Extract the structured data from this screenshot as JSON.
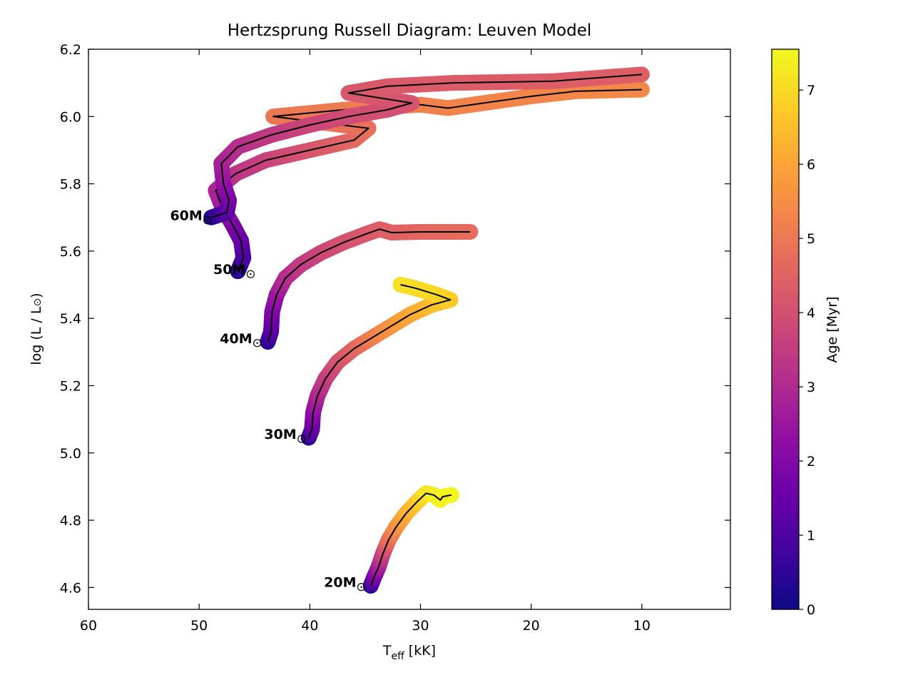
{
  "chart_data": {
    "type": "line",
    "title": "Hertzsprung Russell Diagram: Leuven Model",
    "xlabel_main": "T",
    "xlabel_sub": "eff",
    "xlabel_unit": " [kK]",
    "ylabel_main": "log (L / L",
    "ylabel_sym": "⊙",
    "ylabel_end": ")",
    "xlim": [
      60,
      2
    ],
    "ylim": [
      4.535,
      6.2
    ],
    "xticks": [
      60,
      50,
      40,
      30,
      20,
      10
    ],
    "xtick_labels": [
      "60",
      "50",
      "40",
      "30",
      "20",
      "10"
    ],
    "yticks": [
      4.6,
      4.8,
      5.0,
      5.2,
      5.4,
      5.6,
      5.8,
      6.0,
      6.2
    ],
    "ytick_labels": [
      "4.6",
      "4.8",
      "5.0",
      "5.2",
      "5.4",
      "5.6",
      "5.8",
      "6.0",
      "6.2"
    ],
    "colorbar": {
      "label": "Age [Myr]",
      "range": [
        0,
        7.55
      ],
      "ticks": [
        0,
        1,
        2,
        3,
        4,
        5,
        6,
        7
      ],
      "tick_labels": [
        "0",
        "1",
        "2",
        "3",
        "4",
        "5",
        "6",
        "7"
      ],
      "colormap": "plasma",
      "colors": [
        "#0d0887",
        "#41049d",
        "#6a00a8",
        "#8f0da4",
        "#b12a90",
        "#cc4778",
        "#e16462",
        "#f2844b",
        "#fca636",
        "#fcce25",
        "#f0f921"
      ]
    },
    "series": [
      {
        "name": "20M",
        "label_sym": "⊙",
        "label_at": [
          35.8,
          4.61
        ],
        "points": [
          {
            "x": 34.5,
            "y": 4.605,
            "age": 0.3
          },
          {
            "x": 34.2,
            "y": 4.63,
            "age": 1.5
          },
          {
            "x": 33.8,
            "y": 4.66,
            "age": 2.5
          },
          {
            "x": 33.4,
            "y": 4.7,
            "age": 3.5
          },
          {
            "x": 32.9,
            "y": 4.74,
            "age": 4.6
          },
          {
            "x": 32.2,
            "y": 4.78,
            "age": 5.4
          },
          {
            "x": 31.3,
            "y": 4.82,
            "age": 6.1
          },
          {
            "x": 30.3,
            "y": 4.855,
            "age": 6.6
          },
          {
            "x": 29.5,
            "y": 4.88,
            "age": 7.1
          },
          {
            "x": 28.8,
            "y": 4.875,
            "age": 7.3
          },
          {
            "x": 28.2,
            "y": 4.86,
            "age": 7.4
          },
          {
            "x": 28.0,
            "y": 4.87,
            "age": 7.45
          },
          {
            "x": 27.2,
            "y": 4.875,
            "age": 7.5
          }
        ]
      },
      {
        "name": "30M",
        "label_sym": "⊙",
        "label_at": [
          41.2,
          5.05
        ],
        "points": [
          {
            "x": 40.1,
            "y": 5.045,
            "age": 0.3
          },
          {
            "x": 39.8,
            "y": 5.07,
            "age": 1.2
          },
          {
            "x": 39.7,
            "y": 5.12,
            "age": 2.1
          },
          {
            "x": 39.3,
            "y": 5.17,
            "age": 2.8
          },
          {
            "x": 38.6,
            "y": 5.22,
            "age": 3.4
          },
          {
            "x": 37.5,
            "y": 5.27,
            "age": 4.0
          },
          {
            "x": 36.0,
            "y": 5.31,
            "age": 4.5
          },
          {
            "x": 34.5,
            "y": 5.34,
            "age": 5.0
          },
          {
            "x": 33.0,
            "y": 5.37,
            "age": 5.5
          },
          {
            "x": 31.0,
            "y": 5.41,
            "age": 6.0
          },
          {
            "x": 29.0,
            "y": 5.44,
            "age": 6.4
          },
          {
            "x": 27.3,
            "y": 5.455,
            "age": 6.7
          },
          {
            "x": 28.5,
            "y": 5.47,
            "age": 6.9
          },
          {
            "x": 30.5,
            "y": 5.49,
            "age": 7.0
          },
          {
            "x": 31.8,
            "y": 5.5,
            "age": 7.1
          }
        ]
      },
      {
        "name": "40M",
        "label_sym": "⊙",
        "label_at": [
          45.2,
          5.335
        ],
        "points": [
          {
            "x": 43.8,
            "y": 5.33,
            "age": 0.3
          },
          {
            "x": 43.5,
            "y": 5.36,
            "age": 1.0
          },
          {
            "x": 43.4,
            "y": 5.42,
            "age": 1.8
          },
          {
            "x": 43.0,
            "y": 5.47,
            "age": 2.4
          },
          {
            "x": 42.2,
            "y": 5.52,
            "age": 3.0
          },
          {
            "x": 40.8,
            "y": 5.56,
            "age": 3.4
          },
          {
            "x": 39.0,
            "y": 5.595,
            "age": 3.7
          },
          {
            "x": 37.0,
            "y": 5.625,
            "age": 4.0
          },
          {
            "x": 35.0,
            "y": 5.65,
            "age": 4.2
          },
          {
            "x": 33.7,
            "y": 5.665,
            "age": 4.35
          },
          {
            "x": 32.6,
            "y": 5.655,
            "age": 4.45
          },
          {
            "x": 30.0,
            "y": 5.657,
            "age": 4.55
          },
          {
            "x": 25.5,
            "y": 5.657,
            "age": 4.7
          }
        ]
      },
      {
        "name": "50M",
        "label_sym": "⊙",
        "label_at": [
          45.8,
          5.54
        ],
        "points": [
          {
            "x": 46.5,
            "y": 5.54,
            "age": 0.2
          },
          {
            "x": 46.0,
            "y": 5.58,
            "age": 0.8
          },
          {
            "x": 46.2,
            "y": 5.63,
            "age": 1.3
          },
          {
            "x": 47.0,
            "y": 5.68,
            "age": 1.8
          },
          {
            "x": 47.9,
            "y": 5.73,
            "age": 2.3
          },
          {
            "x": 48.5,
            "y": 5.78,
            "age": 2.8
          },
          {
            "x": 46.7,
            "y": 5.83,
            "age": 3.2
          },
          {
            "x": 44.0,
            "y": 5.87,
            "age": 3.6
          },
          {
            "x": 40.0,
            "y": 5.9,
            "age": 4.1
          },
          {
            "x": 36.0,
            "y": 5.93,
            "age": 4.6
          },
          {
            "x": 34.7,
            "y": 5.965,
            "age": 4.8
          },
          {
            "x": 43.3,
            "y": 6.0,
            "age": 5.0
          },
          {
            "x": 37.0,
            "y": 6.02,
            "age": 5.1
          },
          {
            "x": 30.0,
            "y": 6.035,
            "age": 5.2
          },
          {
            "x": 27.5,
            "y": 6.025,
            "age": 5.25
          },
          {
            "x": 20.0,
            "y": 6.06,
            "age": 5.3
          },
          {
            "x": 16.0,
            "y": 6.075,
            "age": 5.35
          },
          {
            "x": 10.0,
            "y": 6.08,
            "age": 5.4
          }
        ]
      },
      {
        "name": "60M",
        "label_sym": "⊙",
        "label_at": [
          49.7,
          5.7
        ],
        "points": [
          {
            "x": 48.9,
            "y": 5.7,
            "age": 0.2
          },
          {
            "x": 47.5,
            "y": 5.715,
            "age": 1.0
          },
          {
            "x": 47.3,
            "y": 5.75,
            "age": 1.6
          },
          {
            "x": 47.8,
            "y": 5.8,
            "age": 2.2
          },
          {
            "x": 48.0,
            "y": 5.86,
            "age": 2.7
          },
          {
            "x": 46.5,
            "y": 5.91,
            "age": 3.1
          },
          {
            "x": 43.5,
            "y": 5.945,
            "age": 3.4
          },
          {
            "x": 40.0,
            "y": 5.975,
            "age": 3.7
          },
          {
            "x": 36.5,
            "y": 6.0,
            "age": 3.9
          },
          {
            "x": 33.0,
            "y": 6.02,
            "age": 4.0
          },
          {
            "x": 30.8,
            "y": 6.04,
            "age": 4.1
          },
          {
            "x": 36.5,
            "y": 6.07,
            "age": 4.2
          },
          {
            "x": 33.0,
            "y": 6.09,
            "age": 4.25
          },
          {
            "x": 27.0,
            "y": 6.1,
            "age": 4.3
          },
          {
            "x": 18.0,
            "y": 6.105,
            "age": 4.35
          },
          {
            "x": 10.0,
            "y": 6.125,
            "age": 4.4
          }
        ]
      }
    ]
  }
}
